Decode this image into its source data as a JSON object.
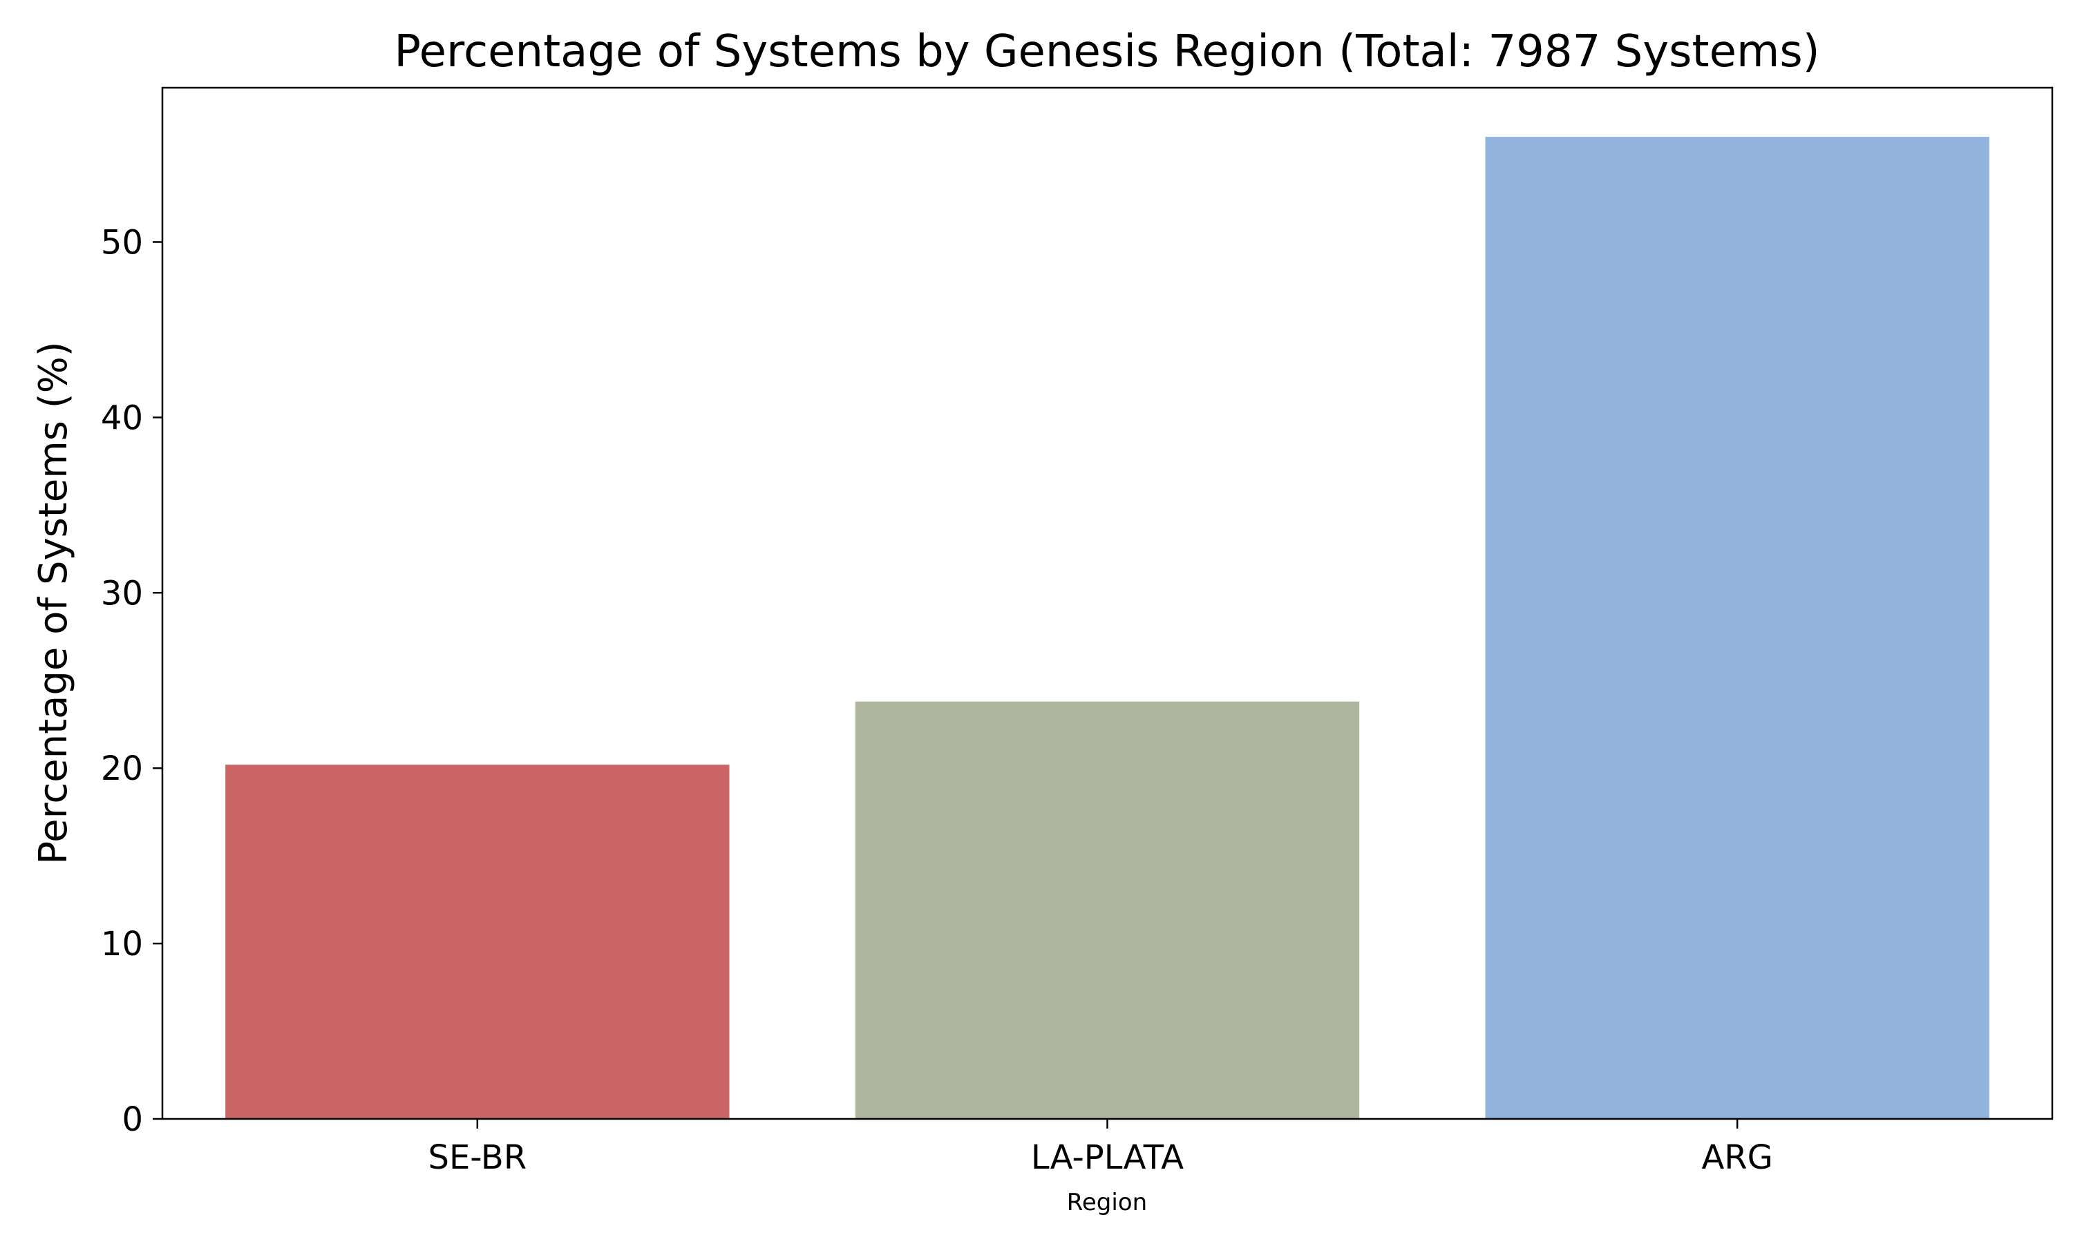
{
  "chart_data": {
    "type": "bar",
    "title": "Percentage of Systems by Genesis Region (Total: 7987 Systems)",
    "xlabel": "Region",
    "ylabel": "Percentage of Systems (%)",
    "categories": [
      "SE-BR",
      "LA-PLATA",
      "ARG"
    ],
    "values": [
      20.2,
      23.8,
      56.0
    ],
    "colors": [
      "#cc6666",
      "#adb69d",
      "#91b3de"
    ],
    "ylim": [
      0,
      58.8
    ],
    "yticks": [
      0,
      10,
      20,
      30,
      40,
      50
    ],
    "grid": false,
    "legend": false
  }
}
